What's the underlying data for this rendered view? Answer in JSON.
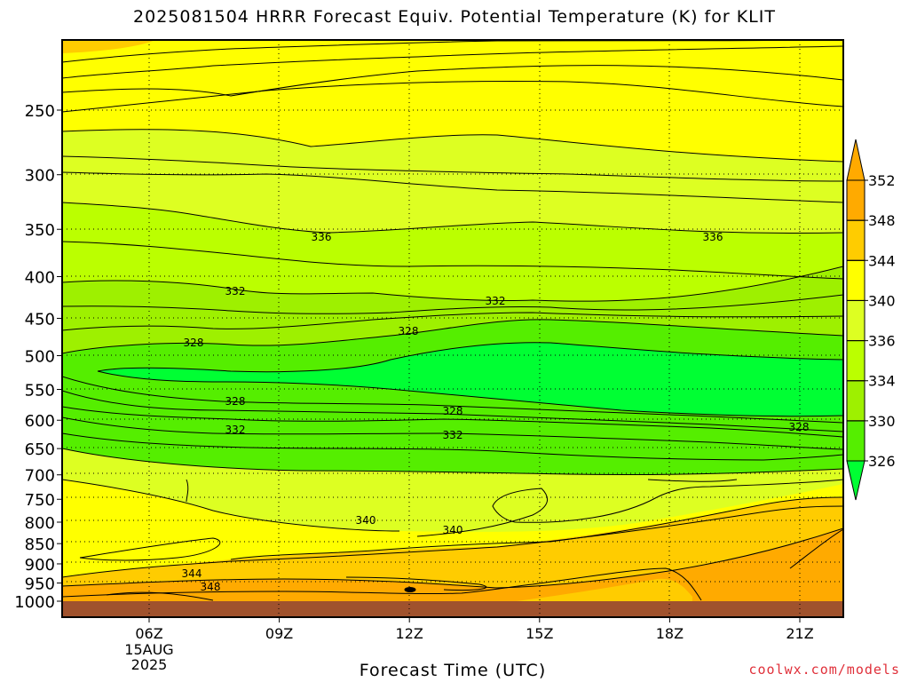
{
  "title": "2025081504 HRRR Forecast Equiv. Potential Temperature (K) for KLIT",
  "xlabel": "Forecast Time (UTC)",
  "credit": "coolwx.com/models",
  "colors": {
    "ground": "#a0522d",
    "c326": "#00ff33",
    "c330": "#55ee00",
    "c334": "#9ef000",
    "c336": "#bbff00",
    "c340": "#ddff22",
    "c344": "#ffff00",
    "c348": "#ffcc00",
    "c352": "#ffaa00"
  },
  "chart_data": {
    "type": "heatmap",
    "title": "2025081504 HRRR Forecast Equiv. Potential Temperature (K) for KLIT",
    "xlabel": "Forecast Time (UTC)",
    "ylabel": "",
    "x_ticks": [
      "06Z",
      "09Z",
      "12Z",
      "15Z",
      "18Z",
      "21Z"
    ],
    "x_date_label": [
      "15AUG",
      "2025"
    ],
    "y_ticks": [
      250,
      300,
      350,
      400,
      450,
      500,
      550,
      600,
      650,
      700,
      750,
      800,
      850,
      900,
      950,
      1000
    ],
    "y_scale": "log-pressure (hPa), inverted",
    "colorbar": {
      "levels": [
        326,
        330,
        334,
        336,
        340,
        344,
        348,
        352
      ],
      "unit": "K",
      "extend": "both"
    },
    "contour_labels": [
      "336",
      "336",
      "332",
      "332",
      "328",
      "328",
      "328",
      "328",
      "328",
      "332",
      "332",
      "340",
      "340",
      "344",
      "348"
    ],
    "profile_06Z": [
      {
        "pressure": 250,
        "theta_e": 344
      },
      {
        "pressure": 300,
        "theta_e": 341
      },
      {
        "pressure": 350,
        "theta_e": 336
      },
      {
        "pressure": 400,
        "theta_e": 333
      },
      {
        "pressure": 450,
        "theta_e": 330
      },
      {
        "pressure": 500,
        "theta_e": 328
      },
      {
        "pressure": 550,
        "theta_e": 327
      },
      {
        "pressure": 600,
        "theta_e": 330
      },
      {
        "pressure": 650,
        "theta_e": 336
      },
      {
        "pressure": 700,
        "theta_e": 340
      },
      {
        "pressure": 800,
        "theta_e": 342
      },
      {
        "pressure": 900,
        "theta_e": 344
      },
      {
        "pressure": 950,
        "theta_e": 346
      },
      {
        "pressure": 1000,
        "theta_e": 348
      }
    ]
  }
}
